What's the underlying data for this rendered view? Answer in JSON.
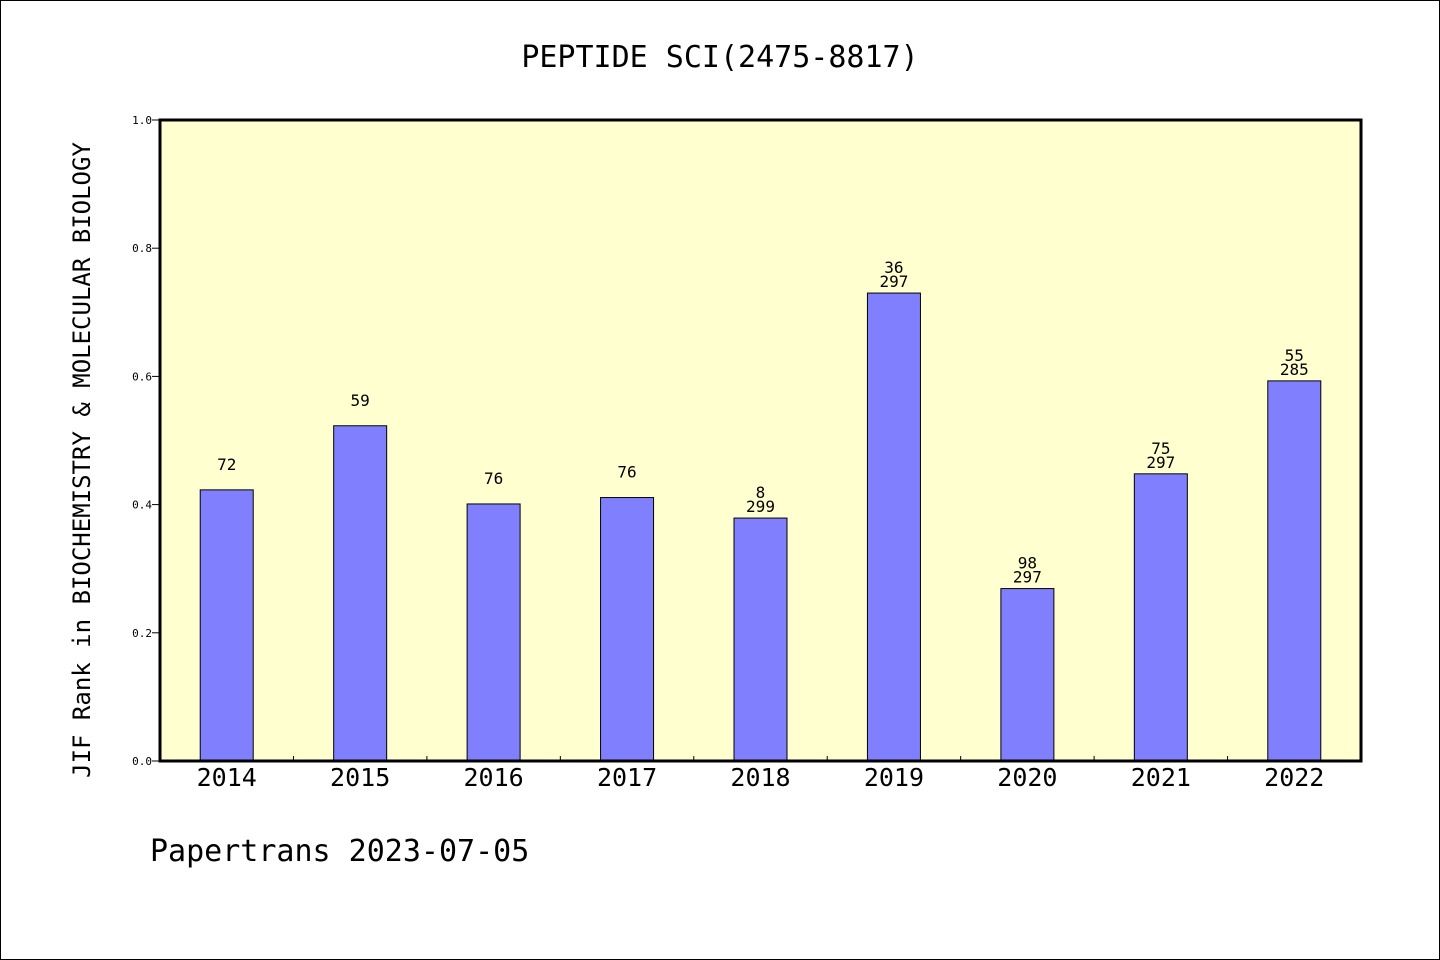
{
  "chart_data": {
    "type": "bar",
    "title": "PEPTIDE SCI(2475-8817)",
    "ylabel": "JIF Rank in BIOCHEMISTRY & MOLECULAR BIOLOGY",
    "xlabel": "",
    "ylim": [
      0,
      1.0
    ],
    "yticks": [
      "0.0",
      "0.2",
      "0.4",
      "0.6",
      "0.8",
      "1.0"
    ],
    "grid": false,
    "categories": [
      "2014",
      "2015",
      "2016",
      "2017",
      "2018",
      "2019",
      "2020",
      "2021",
      "2022"
    ],
    "values": [
      0.423,
      0.523,
      0.401,
      0.411,
      0.379,
      0.73,
      0.269,
      0.448,
      0.593
    ],
    "bar_labels": [
      [
        "72"
      ],
      [
        "59"
      ],
      [
        "76"
      ],
      [
        "76"
      ],
      [
        "8",
        "299"
      ],
      [
        "36",
        "297"
      ],
      [
        "98",
        "297"
      ],
      [
        "75",
        "297"
      ],
      [
        "55",
        "285"
      ]
    ],
    "colors": {
      "bar": "#8080ff",
      "plot_background": "#ffffd0",
      "axis": "#000000"
    }
  },
  "footer": {
    "text": "Papertrans 2023-07-05"
  }
}
